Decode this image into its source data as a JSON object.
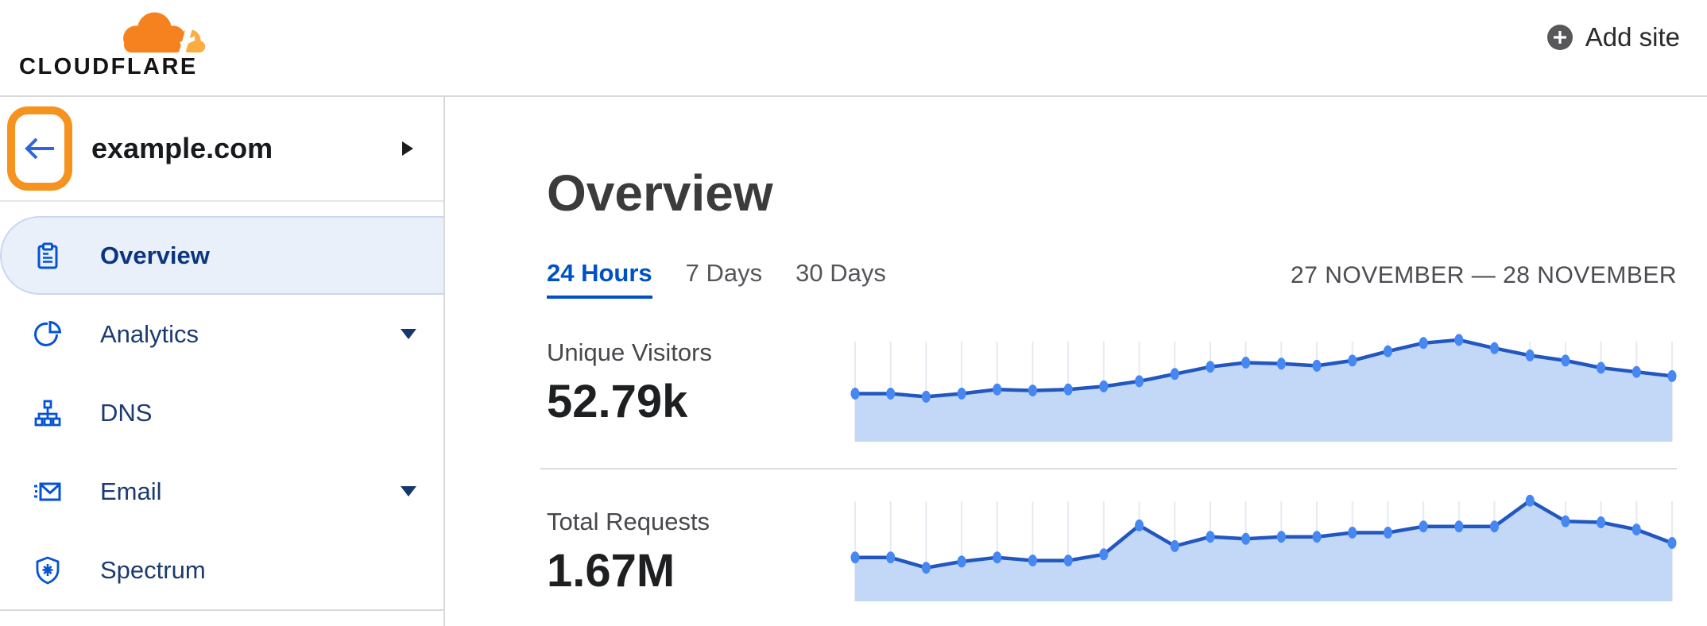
{
  "header": {
    "logo_text": "CLOUDFLARE",
    "add_site_label": "Add site"
  },
  "sidebar": {
    "site_name": "example.com",
    "items": [
      {
        "label": "Overview",
        "icon": "clipboard-icon",
        "active": true,
        "expandable": false
      },
      {
        "label": "Analytics",
        "icon": "pie-chart-icon",
        "active": false,
        "expandable": true
      },
      {
        "label": "DNS",
        "icon": "sitemap-icon",
        "active": false,
        "expandable": false
      },
      {
        "label": "Email",
        "icon": "email-icon",
        "active": false,
        "expandable": true
      },
      {
        "label": "Spectrum",
        "icon": "shield-icon",
        "active": false,
        "expandable": false
      }
    ]
  },
  "main": {
    "title": "Overview",
    "tabs": [
      {
        "label": "24 Hours",
        "active": true
      },
      {
        "label": "7 Days",
        "active": false
      },
      {
        "label": "30 Days",
        "active": false
      }
    ],
    "date_range": "27 NOVEMBER — 28 NOVEMBER",
    "metrics": [
      {
        "label": "Unique Visitors",
        "value": "52.79k"
      },
      {
        "label": "Total Requests",
        "value": "1.67M"
      }
    ]
  },
  "chart_data": [
    {
      "type": "area",
      "title": "Unique Visitors (24 Hours)",
      "total_label": "52.79k",
      "x_unit": "hour",
      "points_norm": [
        0.45,
        0.45,
        0.42,
        0.45,
        0.49,
        0.48,
        0.49,
        0.52,
        0.57,
        0.64,
        0.71,
        0.75,
        0.74,
        0.72,
        0.77,
        0.86,
        0.94,
        0.97,
        0.89,
        0.82,
        0.77,
        0.7,
        0.66,
        0.62
      ],
      "grid": "vertical-per-point",
      "legend": "none"
    },
    {
      "type": "area",
      "title": "Total Requests (24 Hours)",
      "total_label": "1.67M",
      "x_unit": "hour",
      "points_norm": [
        0.41,
        0.41,
        0.31,
        0.37,
        0.41,
        0.38,
        0.38,
        0.44,
        0.72,
        0.52,
        0.61,
        0.59,
        0.61,
        0.61,
        0.65,
        0.65,
        0.71,
        0.71,
        0.71,
        0.96,
        0.76,
        0.75,
        0.68,
        0.55
      ],
      "grid": "vertical-per-point",
      "legend": "none"
    }
  ],
  "colors": {
    "brand_orange": "#F6821F",
    "brand_orange_light": "#FBAD41",
    "annotation_orange": "#F6921E",
    "link_blue": "#0051c3",
    "icon_blue": "#0553d2",
    "nav_text": "#1b3a6e",
    "chart_line": "#2257c0",
    "chart_dot": "#4687f2",
    "chart_fill": "#c3d8f7",
    "chart_grid": "#e7eaf0",
    "divider": "#d9d9d9"
  }
}
